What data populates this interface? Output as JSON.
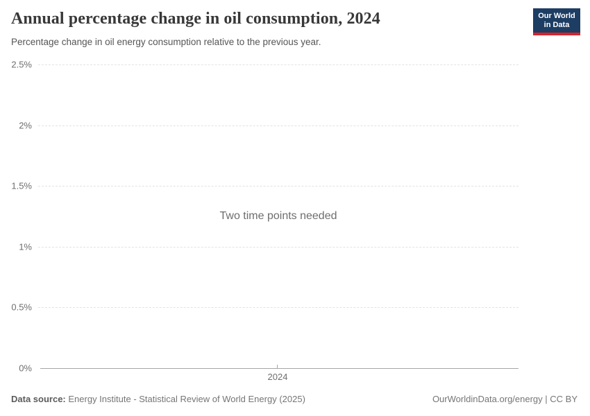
{
  "header": {
    "title": "Annual percentage change in oil consumption, 2024",
    "subtitle": "Percentage change in oil energy consumption relative to the previous year.",
    "logo": {
      "line1": "Our World",
      "line2": "in Data",
      "bg_color": "#1d3d63",
      "stripe_color": "#d8232a"
    }
  },
  "chart_data": {
    "type": "line",
    "title": "Annual percentage change in oil consumption, 2024",
    "subtitle": "Percentage change in oil energy consumption relative to the previous year.",
    "series": [],
    "x_ticks": [
      "2024"
    ],
    "y_ticks": [
      "0%",
      "0.5%",
      "1%",
      "1.5%",
      "2%",
      "2.5%"
    ],
    "ylim": [
      0,
      2.5
    ],
    "xlabel": "",
    "ylabel": "",
    "grid": true,
    "legend": "none",
    "message": "Two time points needed",
    "colors": {
      "gridline": "#e2e2e2",
      "axis": "#a5a5a5",
      "tick_label": "#6e6e6e"
    }
  },
  "footer": {
    "datasource_label": "Data source:",
    "datasource_value": "Energy Institute - Statistical Review of World Energy (2025)",
    "rights": "OurWorldinData.org/energy | CC BY"
  }
}
